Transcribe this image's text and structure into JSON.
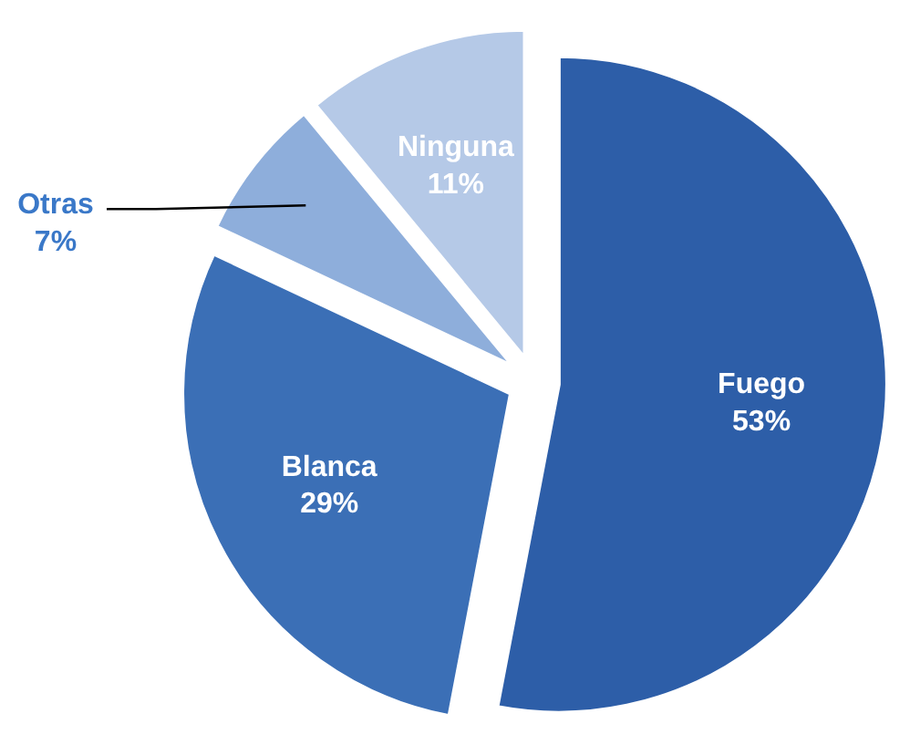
{
  "chart_data": {
    "type": "pie",
    "categories": [
      "Fuego",
      "Blanca",
      "Otras",
      "Ninguna"
    ],
    "values": [
      53,
      29,
      7,
      11
    ],
    "value_labels": [
      "53%",
      "29%",
      "7%",
      "11%"
    ],
    "colors": [
      "#2d5ea8",
      "#3b6fb6",
      "#8eaedb",
      "#b5c9e7"
    ]
  }
}
